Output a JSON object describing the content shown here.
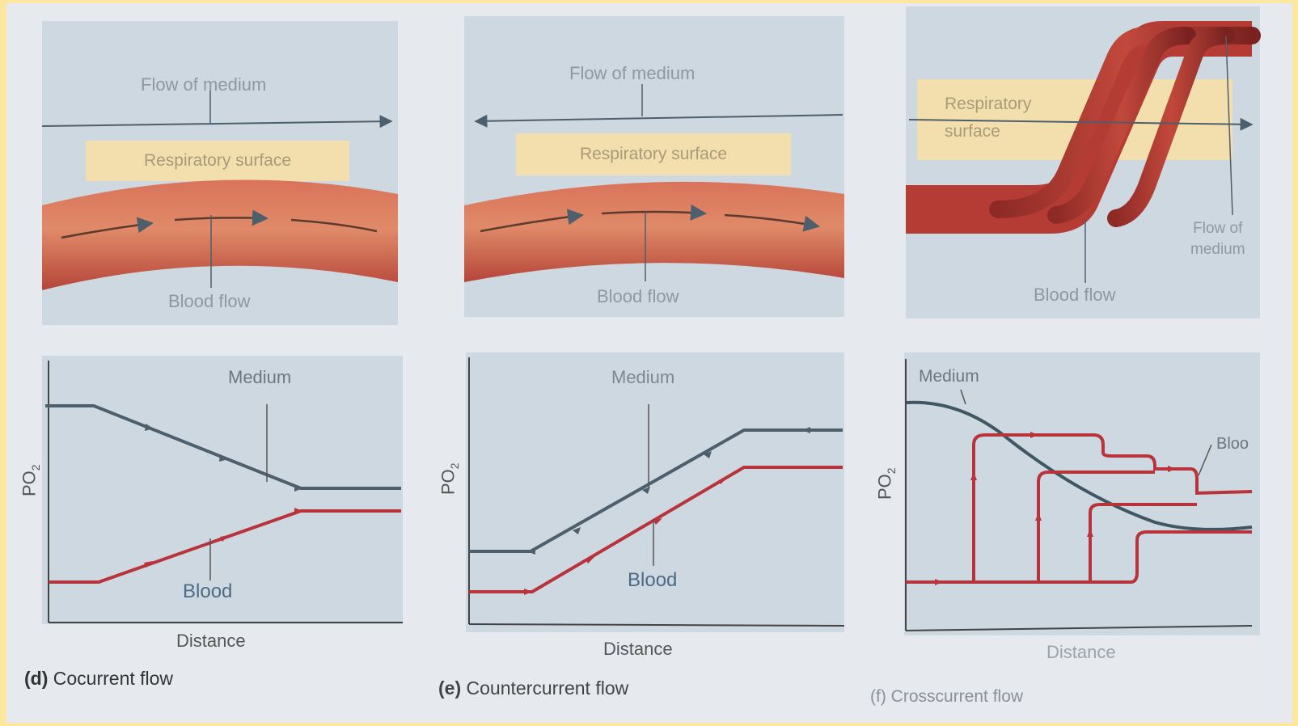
{
  "panels": {
    "d": {
      "flow_label": "Flow of medium",
      "surface_label": "Respiratory surface",
      "blood_label": "Blood flow",
      "graph": {
        "medium": "Medium",
        "blood": "Blood",
        "y": "PO",
        "y_sub": "2",
        "x": "Distance"
      },
      "caption_letter": "(d)",
      "caption_text": "Cocurrent flow"
    },
    "e": {
      "flow_label": "Flow of medium",
      "surface_label": "Respiratory surface",
      "blood_label": "Blood flow",
      "graph": {
        "medium": "Medium",
        "blood": "Blood",
        "y": "PO",
        "y_sub": "2",
        "x": "Distance"
      },
      "caption_letter": "(e)",
      "caption_text": "Countercurrent flow"
    },
    "f": {
      "surface_label_1": "Respiratory",
      "surface_label_2": "surface",
      "flow_label_1": "Flow of",
      "flow_label_2": "medium",
      "blood_label": "Blood flow",
      "graph": {
        "medium": "Medium",
        "blood": "Bloo",
        "y": "PO",
        "y_sub": "2",
        "x": "Distance"
      },
      "caption_letter": "(f)",
      "caption_text": "Crosscurrent flow"
    }
  },
  "colors": {
    "medium_line": "#4d5f6c",
    "blood_line": "#b8333a",
    "vessel": "#cf5a45"
  }
}
